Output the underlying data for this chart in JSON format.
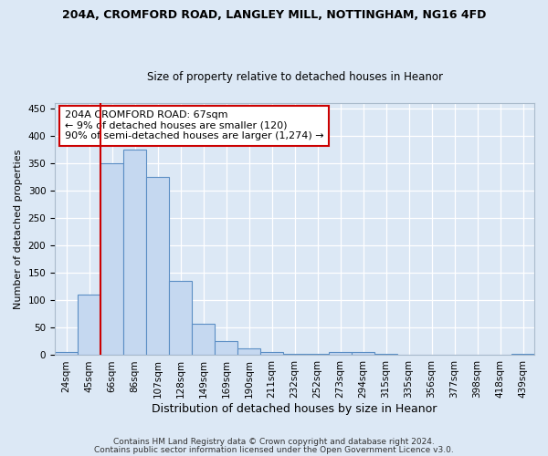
{
  "title1": "204A, CROMFORD ROAD, LANGLEY MILL, NOTTINGHAM, NG16 4FD",
  "title2": "Size of property relative to detached houses in Heanor",
  "xlabel": "Distribution of detached houses by size in Heanor",
  "ylabel": "Number of detached properties",
  "bin_labels": [
    "24sqm",
    "45sqm",
    "66sqm",
    "86sqm",
    "107sqm",
    "128sqm",
    "149sqm",
    "169sqm",
    "190sqm",
    "211sqm",
    "232sqm",
    "252sqm",
    "273sqm",
    "294sqm",
    "315sqm",
    "335sqm",
    "356sqm",
    "377sqm",
    "398sqm",
    "418sqm",
    "439sqm"
  ],
  "bar_heights": [
    5,
    110,
    350,
    375,
    325,
    135,
    57,
    25,
    12,
    6,
    3,
    2,
    5,
    5,
    3,
    1,
    1,
    1,
    0,
    0,
    2
  ],
  "bar_color": "#c5d8f0",
  "bar_edge_color": "#5b8ec4",
  "vline_x_index": 2,
  "annotation_text": "204A CROMFORD ROAD: 67sqm\n← 9% of detached houses are smaller (120)\n90% of semi-detached houses are larger (1,274) →",
  "annotation_box_color": "white",
  "annotation_box_edge_color": "#cc0000",
  "vline_color": "#cc0000",
  "ylim": [
    0,
    460
  ],
  "yticks": [
    0,
    50,
    100,
    150,
    200,
    250,
    300,
    350,
    400,
    450
  ],
  "footer1": "Contains HM Land Registry data © Crown copyright and database right 2024.",
  "footer2": "Contains public sector information licensed under the Open Government Licence v3.0.",
  "bg_color": "#dce8f5",
  "plot_bg_color": "#dce8f5",
  "title1_fontsize": 9,
  "title2_fontsize": 8.5,
  "xlabel_fontsize": 9,
  "ylabel_fontsize": 8,
  "tick_fontsize": 7.5,
  "annotation_fontsize": 8,
  "footer_fontsize": 6.5
}
